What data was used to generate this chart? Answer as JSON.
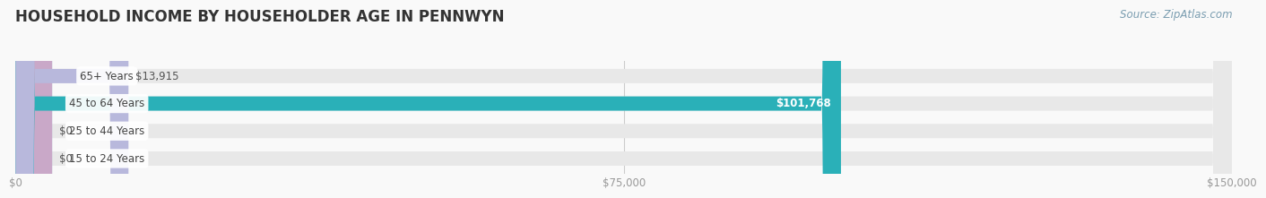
{
  "title": "HOUSEHOLD INCOME BY HOUSEHOLDER AGE IN PENNWYN",
  "source": "Source: ZipAtlas.com",
  "categories": [
    "15 to 24 Years",
    "25 to 44 Years",
    "45 to 64 Years",
    "65+ Years"
  ],
  "values": [
    0,
    0,
    101768,
    13915
  ],
  "bar_colors": [
    "#a8c4dc",
    "#c9a8c8",
    "#2ab0b8",
    "#b8b8dc"
  ],
  "bar_bg_color": "#e8e8e8",
  "value_labels": [
    "$0",
    "$0",
    "$101,768",
    "$13,915"
  ],
  "xmax": 150000,
  "xticks": [
    0,
    75000,
    150000
  ],
  "xtick_labels": [
    "$0",
    "$75,000",
    "$150,000"
  ],
  "title_fontsize": 12,
  "source_fontsize": 8.5,
  "label_fontsize": 8.5,
  "bar_height": 0.52,
  "background_color": "#f9f9f9"
}
